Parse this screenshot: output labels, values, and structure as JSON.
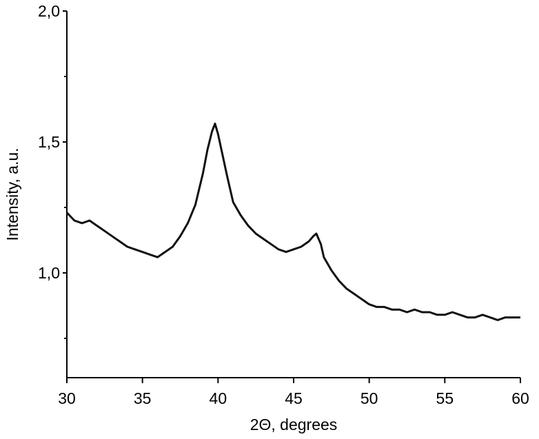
{
  "chart_data": {
    "type": "line",
    "xlabel": "2Θ, degrees",
    "ylabel": "Intensity, a.u.",
    "xlim": [
      30,
      60
    ],
    "xticks": [
      30,
      35,
      40,
      45,
      50,
      55,
      60
    ],
    "ylim": [
      0.6,
      2.0
    ],
    "yticks": [
      {
        "value": 1.0,
        "label": "1,0"
      },
      {
        "value": 1.5,
        "label": "1,5"
      },
      {
        "value": 2.0,
        "label": "2,0"
      }
    ],
    "yminorticks": [
      0.75,
      1.25,
      1.75
    ],
    "grid": false,
    "x": [
      30,
      30.5,
      31,
      31.5,
      32,
      32.5,
      33,
      33.5,
      34,
      34.5,
      35,
      35.5,
      36,
      36.5,
      37,
      37.5,
      38,
      38.5,
      39,
      39.3,
      39.6,
      39.8,
      40,
      40.3,
      40.6,
      41,
      41.5,
      42,
      42.5,
      43,
      43.5,
      44,
      44.5,
      45,
      45.5,
      46,
      46.3,
      46.5,
      46.8,
      47,
      47.5,
      48,
      48.5,
      49,
      49.5,
      50,
      50.5,
      51,
      51.5,
      52,
      52.5,
      53,
      53.5,
      54,
      54.5,
      55,
      55.5,
      56,
      56.5,
      57,
      57.5,
      58,
      58.5,
      59,
      59.5,
      60
    ],
    "series": [
      {
        "name": "Intensity",
        "color": "#111111",
        "values": [
          1.23,
          1.2,
          1.19,
          1.2,
          1.18,
          1.16,
          1.14,
          1.12,
          1.1,
          1.09,
          1.08,
          1.07,
          1.06,
          1.08,
          1.1,
          1.14,
          1.19,
          1.26,
          1.38,
          1.47,
          1.54,
          1.57,
          1.53,
          1.45,
          1.37,
          1.27,
          1.22,
          1.18,
          1.15,
          1.13,
          1.11,
          1.09,
          1.08,
          1.09,
          1.1,
          1.12,
          1.14,
          1.15,
          1.11,
          1.06,
          1.01,
          0.97,
          0.94,
          0.92,
          0.9,
          0.88,
          0.87,
          0.87,
          0.86,
          0.86,
          0.85,
          0.86,
          0.85,
          0.85,
          0.84,
          0.84,
          0.85,
          0.84,
          0.83,
          0.83,
          0.84,
          0.83,
          0.82,
          0.83,
          0.83,
          0.83
        ]
      }
    ]
  }
}
